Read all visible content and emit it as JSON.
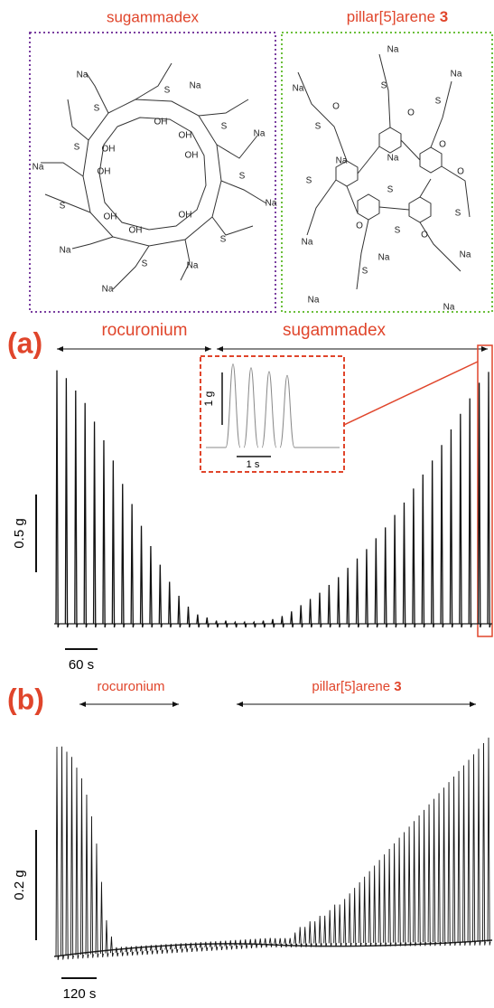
{
  "structures": {
    "sugammadex": {
      "title": "sugammadex",
      "labels": [
        "Na",
        "Na",
        "Na",
        "Na",
        "Na",
        "Na",
        "Na",
        "Na",
        "S",
        "S",
        "S",
        "S",
        "S",
        "S",
        "S",
        "S",
        "OH",
        "OH",
        "OH",
        "OH",
        "OH",
        "OH",
        "OH",
        "OH"
      ]
    },
    "pillararene": {
      "title": "pillar[5]arene",
      "number": "3",
      "labels": [
        "Na",
        "Na",
        "Na",
        "Na",
        "Na",
        "Na",
        "Na",
        "Na",
        "Na",
        "Na",
        "S",
        "S",
        "S",
        "S",
        "S",
        "S",
        "S",
        "S",
        "O",
        "O",
        "O",
        "O",
        "O",
        "O"
      ]
    }
  },
  "panel_a": {
    "label": "(a)",
    "arrow_left": "rocuronium",
    "arrow_right": "sugammadex",
    "scale_y": "0.5 g",
    "scale_x": "60 s",
    "inset": {
      "scale_y": "1 g",
      "scale_x": "1 s",
      "peaks": [
        2.2,
        2.1,
        2.0,
        1.9
      ]
    },
    "peaks": [
      1.63,
      1.58,
      1.5,
      1.42,
      1.3,
      1.18,
      1.05,
      0.9,
      0.77,
      0.63,
      0.5,
      0.38,
      0.27,
      0.18,
      0.11,
      0.06,
      0.04,
      0.02,
      0.02,
      0.01,
      0.01,
      0.01,
      0.02,
      0.03,
      0.05,
      0.08,
      0.12,
      0.16,
      0.2,
      0.25,
      0.3,
      0.36,
      0.42,
      0.48,
      0.55,
      0.62,
      0.7,
      0.78,
      0.87,
      0.96,
      1.05,
      1.15,
      1.25,
      1.35,
      1.45,
      1.55,
      1.62
    ]
  },
  "panel_b": {
    "label": "(b)",
    "arrow_left": "rocuronium",
    "arrow_right": "pillar[5]arene",
    "arrow_right_number": "3",
    "scale_y": "0.2 g",
    "scale_x": "120 s",
    "peaks": [
      0.38,
      0.38,
      0.37,
      0.36,
      0.34,
      0.32,
      0.29,
      0.25,
      0.2,
      0.13,
      0.06,
      0.03,
      0.01,
      0.01,
      0.01,
      0.01,
      0.01,
      0.01,
      0.01,
      0.01,
      0.01,
      0.01,
      0.01,
      0.01,
      0.01,
      0.01,
      0.01,
      0.01,
      0.01,
      0.01,
      0.01,
      0.01,
      0.01,
      0.01,
      0.01,
      0.01,
      0.01,
      0.01,
      0.01,
      0.01,
      0.01,
      0.01,
      0.01,
      0.01,
      0.01,
      0.01,
      0.01,
      0.01,
      0.02,
      0.03,
      0.03,
      0.04,
      0.04,
      0.05,
      0.05,
      0.06,
      0.07,
      0.07,
      0.08,
      0.09,
      0.1,
      0.11,
      0.12,
      0.13,
      0.14,
      0.15,
      0.16,
      0.17,
      0.18,
      0.19,
      0.2,
      0.21,
      0.22,
      0.23,
      0.24,
      0.25,
      0.26,
      0.27,
      0.28,
      0.29,
      0.3,
      0.31,
      0.32,
      0.33,
      0.34,
      0.35,
      0.36,
      0.37
    ]
  }
}
